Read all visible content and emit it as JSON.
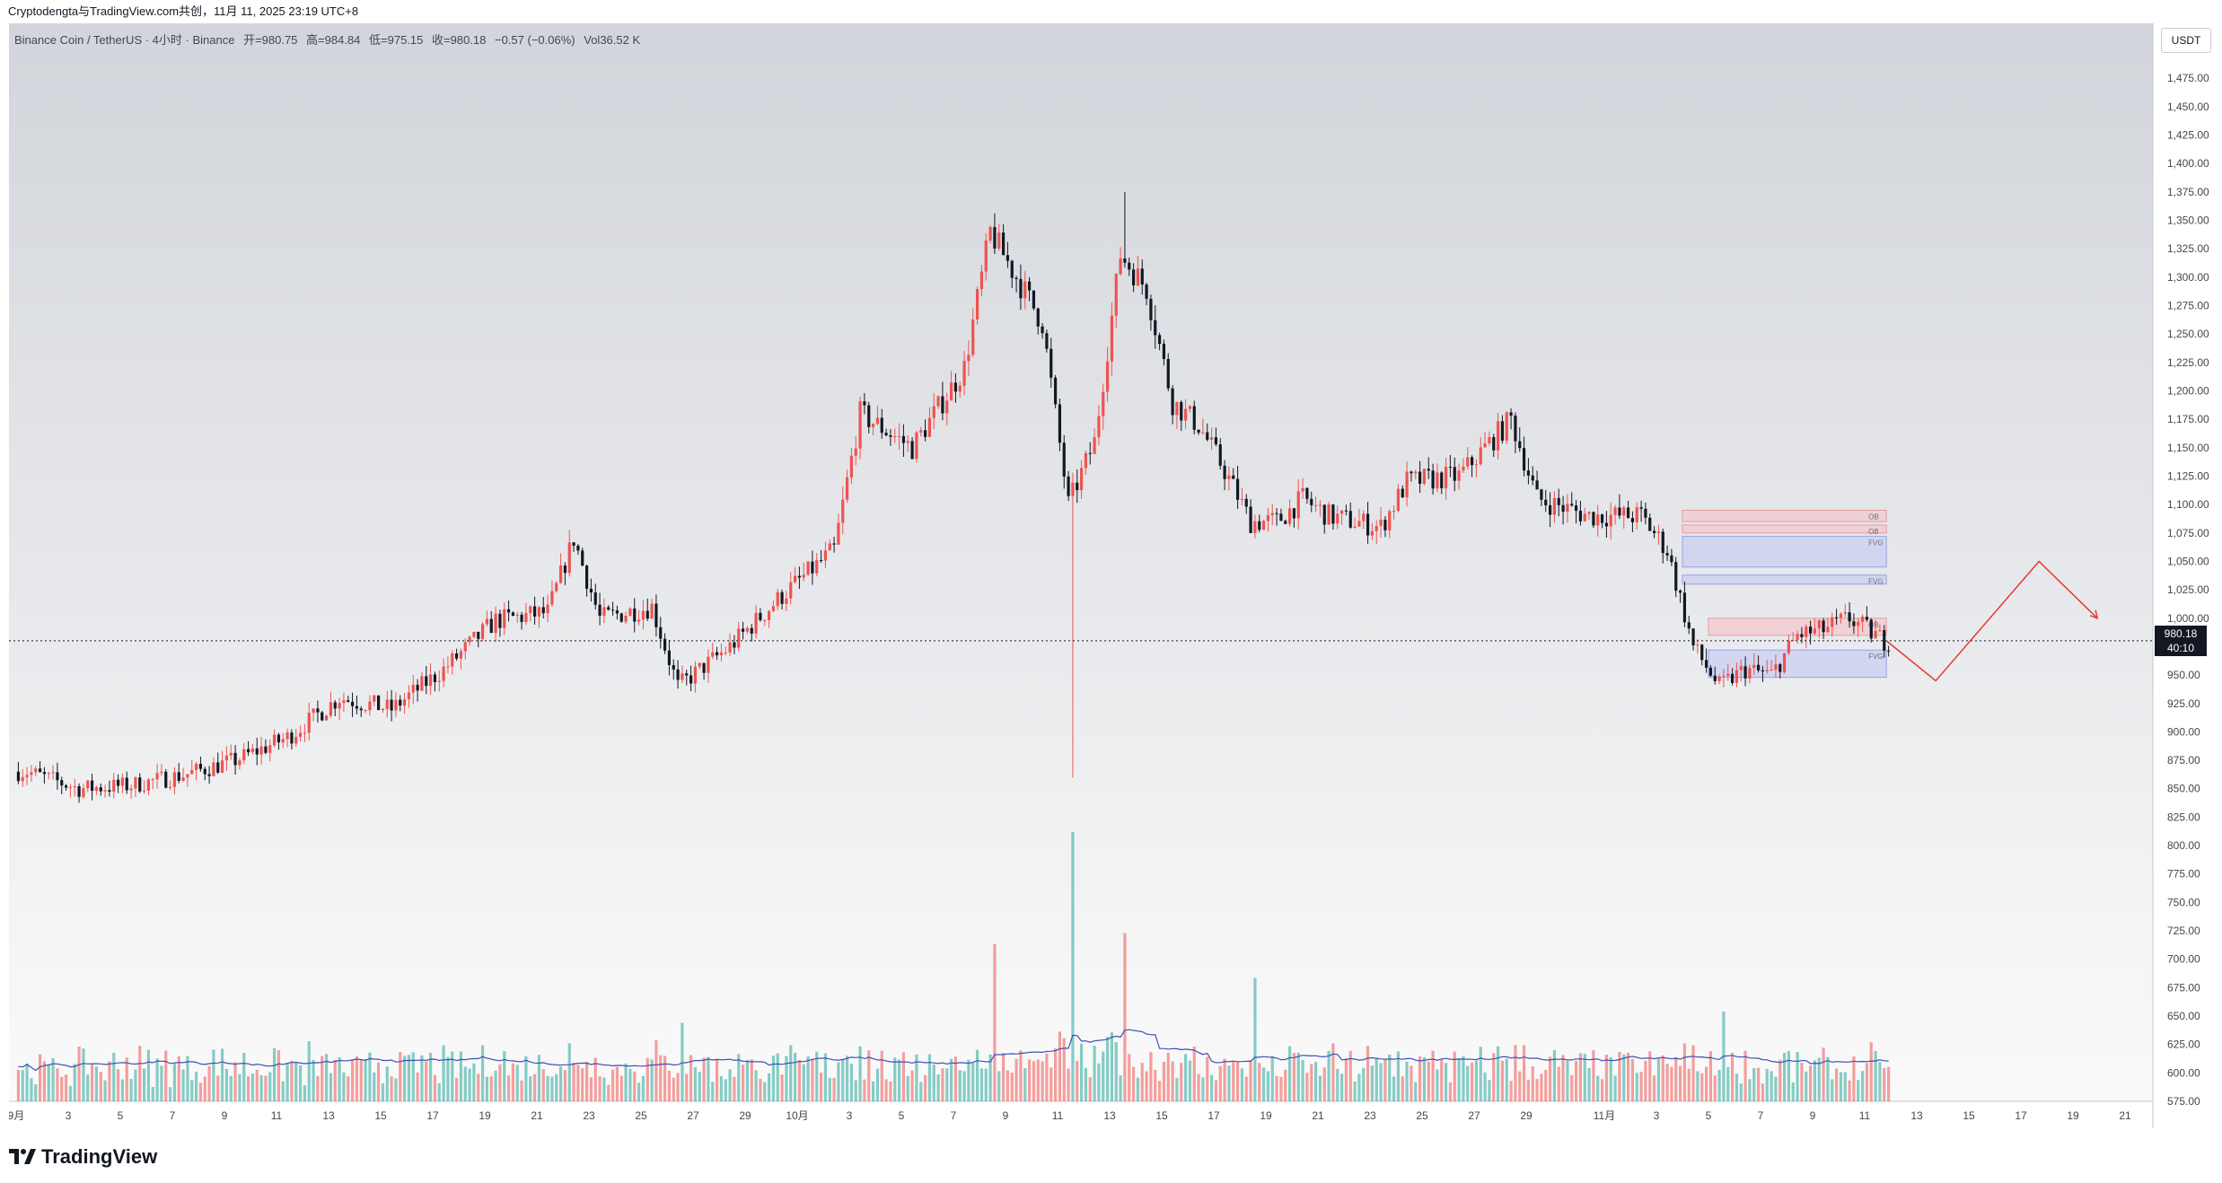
{
  "header": {
    "credit": "Cryptodengta与TradingView.com共创，11月 11, 2025 23:19 UTC+8"
  },
  "legend": {
    "symbol": "Binance Coin / TetherUS · 4小时 · Binance",
    "open": "开=980.75",
    "high": "高=984.84",
    "low": "低=975.15",
    "close": "收=980.18",
    "change": "−0.57 (−0.06%)",
    "volume": "Vol36.52 K"
  },
  "currency_button": "USDT",
  "price_tag": {
    "price": "980.18",
    "countdown": "40:10"
  },
  "footer": {
    "brand": "TradingView"
  },
  "colors": {
    "up": "#ef5350",
    "down": "#131722",
    "vol_up": "#26a69a",
    "vol_down": "#ef5350",
    "vol_ma": "#3f4fb5",
    "projection": "#e53935"
  },
  "chart_data": {
    "type": "candlestick",
    "symbol": "BNBUSDT",
    "timeframe": "4h",
    "current_price": 980.18,
    "ylim": [
      575,
      1490
    ],
    "y_ticks": [
      "1,475.00",
      "1,450.00",
      "1,425.00",
      "1,400.00",
      "1,375.00",
      "1,350.00",
      "1,325.00",
      "1,300.00",
      "1,275.00",
      "1,250.00",
      "1,225.00",
      "1,200.00",
      "1,175.00",
      "1,150.00",
      "1,125.00",
      "1,100.00",
      "1,075.00",
      "1,050.00",
      "1,025.00",
      "1,000.00",
      "950.00",
      "925.00",
      "900.00",
      "875.00",
      "850.00",
      "825.00",
      "800.00",
      "775.00",
      "750.00",
      "725.00",
      "700.00",
      "675.00",
      "650.00",
      "625.00",
      "600.00",
      "575.00"
    ],
    "x_ticks": [
      "9月",
      "3",
      "5",
      "7",
      "9",
      "11",
      "13",
      "15",
      "17",
      "19",
      "21",
      "23",
      "25",
      "27",
      "29",
      "10月",
      "3",
      "5",
      "7",
      "9",
      "11",
      "13",
      "15",
      "17",
      "19",
      "21",
      "23",
      "25",
      "27",
      "29",
      "11月",
      "3",
      "5",
      "7",
      "9",
      "11",
      "13",
      "15",
      "17",
      "19",
      "21"
    ],
    "price_path": [
      {
        "date": "09-01",
        "close": 865
      },
      {
        "date": "09-03",
        "close": 850
      },
      {
        "date": "09-05",
        "close": 853
      },
      {
        "date": "09-07",
        "close": 862
      },
      {
        "date": "09-09",
        "close": 875
      },
      {
        "date": "09-11",
        "close": 895
      },
      {
        "date": "09-13",
        "close": 930
      },
      {
        "date": "09-15",
        "close": 920
      },
      {
        "date": "09-17",
        "close": 955
      },
      {
        "date": "09-19",
        "close": 998
      },
      {
        "date": "09-21",
        "close": 1005
      },
      {
        "date": "09-22",
        "close": 1070
      },
      {
        "date": "09-23",
        "close": 1000
      },
      {
        "date": "09-25",
        "close": 1010
      },
      {
        "date": "09-26",
        "close": 940
      },
      {
        "date": "09-28",
        "close": 975
      },
      {
        "date": "09-30",
        "close": 1020
      },
      {
        "date": "10-02",
        "close": 1060
      },
      {
        "date": "10-03",
        "close": 1180
      },
      {
        "date": "10-05",
        "close": 1150
      },
      {
        "date": "10-07",
        "close": 1220
      },
      {
        "date": "10-08",
        "close": 1340
      },
      {
        "date": "10-09",
        "close": 1300
      },
      {
        "date": "10-10",
        "close": 1260
      },
      {
        "date": "10-11",
        "close": 1100
      },
      {
        "date": "10-12",
        "close": 1155
      },
      {
        "date": "10-13",
        "close": 1320
      },
      {
        "date": "10-14",
        "close": 1290
      },
      {
        "date": "10-15",
        "close": 1190
      },
      {
        "date": "10-16",
        "close": 1170
      },
      {
        "date": "10-17",
        "close": 1130
      },
      {
        "date": "10-18",
        "close": 1085
      },
      {
        "date": "10-19",
        "close": 1085
      },
      {
        "date": "10-20",
        "close": 1105
      },
      {
        "date": "10-21",
        "close": 1090
      },
      {
        "date": "10-23",
        "close": 1080
      },
      {
        "date": "10-24",
        "close": 1120
      },
      {
        "date": "10-26",
        "close": 1125
      },
      {
        "date": "10-28",
        "close": 1175
      },
      {
        "date": "10-29",
        "close": 1105
      },
      {
        "date": "10-31",
        "close": 1090
      },
      {
        "date": "11-02",
        "close": 1090
      },
      {
        "date": "11-03",
        "close": 1060
      },
      {
        "date": "11-04",
        "close": 975
      },
      {
        "date": "11-05",
        "close": 940
      },
      {
        "date": "11-06",
        "close": 955
      },
      {
        "date": "11-07",
        "close": 950
      },
      {
        "date": "11-08",
        "close": 985
      },
      {
        "date": "11-09",
        "close": 990
      },
      {
        "date": "11-10",
        "close": 1000
      },
      {
        "date": "11-11",
        "close": 980.18
      }
    ],
    "extremes": {
      "low_wick": {
        "date": "10-11",
        "price": 860
      },
      "high": {
        "date": "10-13",
        "price": 1375
      }
    },
    "volume_ylim": [
      0,
      240
    ],
    "volume_spikes": [
      {
        "date": "10-11",
        "volume": 240
      },
      {
        "date": "10-13",
        "volume": 150
      },
      {
        "date": "10-08",
        "volume": 140
      },
      {
        "date": "10-18",
        "volume": 110
      },
      {
        "date": "09-26",
        "volume": 70
      },
      {
        "date": "11-05",
        "volume": 80
      }
    ],
    "zones": [
      {
        "label": "OB",
        "low": 1085,
        "high": 1095
      },
      {
        "label": "OB",
        "low": 1075,
        "high": 1082
      },
      {
        "label": "FVG",
        "low": 1045,
        "high": 1072
      },
      {
        "label": "FVG",
        "low": 1030,
        "high": 1038
      },
      {
        "label": "OB",
        "low": 985,
        "high": 1000
      },
      {
        "label": "FVG",
        "low": 948,
        "high": 972
      }
    ],
    "projection_path": [
      980.18,
      945,
      1050,
      1000
    ]
  }
}
